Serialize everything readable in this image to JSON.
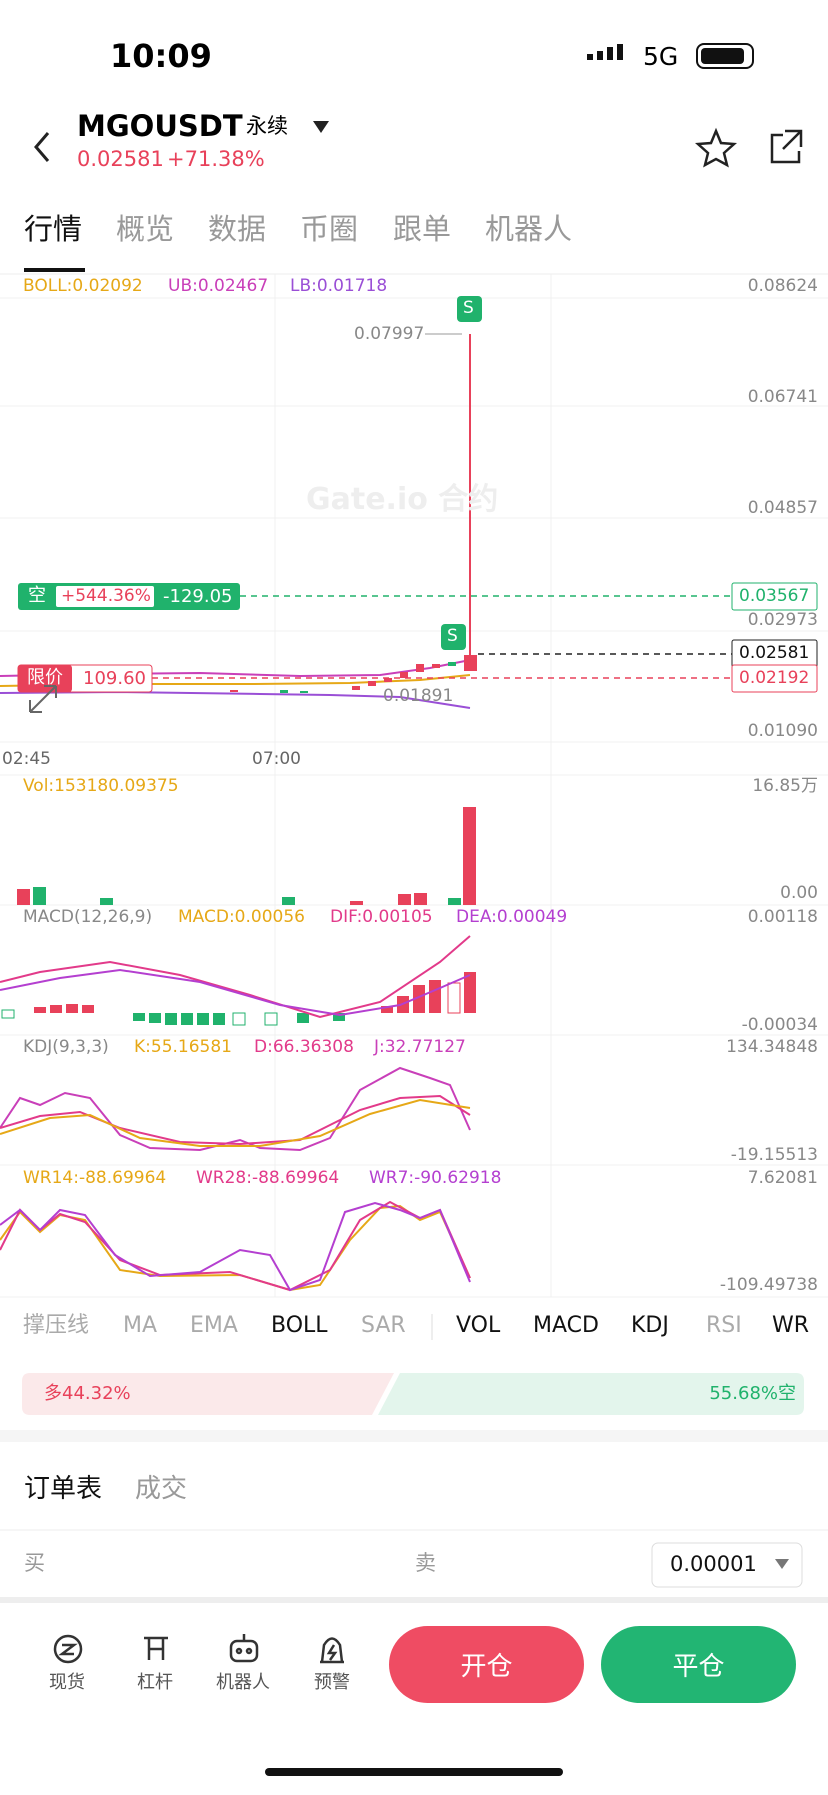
{
  "status_bar": {
    "time": "10:09",
    "network": "5G"
  },
  "header": {
    "symbol": "MGOUSDT",
    "contract": "永续",
    "price": "0.02581",
    "change": "+71.38%"
  },
  "tabs": [
    "行情",
    "概览",
    "数据",
    "币圈",
    "跟单",
    "机器人"
  ],
  "chart": {
    "boll": {
      "label": "BOLL:0.02092",
      "ub": "UB:0.02467",
      "lb": "LB:0.01718"
    },
    "price_axis": [
      "0.08624",
      "0.06741",
      "0.04857",
      "0.02973",
      "0.01090"
    ],
    "high_label": "0.07997",
    "low_label": "0.01891",
    "marker": "S",
    "position_line": {
      "side": "空",
      "pnl": "+544.36%",
      "amount": "-129.05",
      "price": "0.03567"
    },
    "last_price": "0.02581",
    "limit_line": {
      "label": "限价",
      "amount": "109.60",
      "price": "0.02192"
    },
    "time_axis": [
      "02:45",
      "07:00"
    ],
    "watermark": "Gate.io 合约",
    "vol": {
      "label": "Vol:153180.09375",
      "max": "16.85万",
      "min": "0.00"
    },
    "macd": {
      "label": "MACD(12,26,9)",
      "macd": "MACD:0.00056",
      "dif": "DIF:0.00105",
      "dea": "DEA:0.00049",
      "max": "0.00118",
      "min": "-0.00034"
    },
    "kdj": {
      "label": "KDJ(9,3,3)",
      "k": "K:55.16581",
      "d": "D:66.36308",
      "j": "J:32.77127",
      "max": "134.34848",
      "min": "-19.15513"
    },
    "wr": {
      "wr14": "WR14:-88.69964",
      "wr28": "WR28:-88.69964",
      "wr7": "WR7:-90.62918",
      "max": "7.62081",
      "min": "-109.49738"
    }
  },
  "indicator_tabs": [
    "撑压线",
    "MA",
    "EMA",
    "BOLL",
    "SAR",
    "VOL",
    "MACD",
    "KDJ",
    "RSI",
    "WR"
  ],
  "sentiment": {
    "long": "多44.32%",
    "short": "55.68%空"
  },
  "order_book": {
    "tabs": [
      "订单表",
      "成交"
    ],
    "buy": "买",
    "sell": "卖",
    "precision": "0.00001"
  },
  "bottom_nav": {
    "items": [
      "现货",
      "杠杆",
      "机器人",
      "预警"
    ],
    "open": "开仓",
    "close": "平仓"
  }
}
